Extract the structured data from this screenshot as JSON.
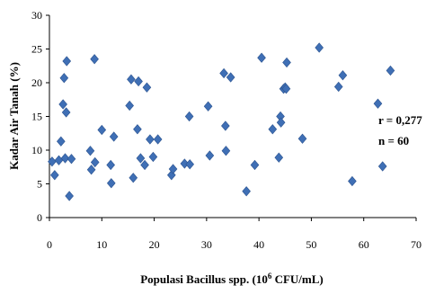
{
  "chart_data": {
    "type": "scatter",
    "xlabel": "Populasi Bacillus spp. (10",
    "xlabel_sup": "6",
    "xlabel_tail": " CFU/mL)",
    "ylabel": "Kadar Air Tanah (%)",
    "xlim": [
      0,
      70
    ],
    "ylim": [
      0,
      30
    ],
    "x_ticks": [
      0,
      10,
      20,
      30,
      40,
      50,
      60,
      70
    ],
    "y_ticks": [
      0,
      5,
      10,
      15,
      20,
      25,
      30
    ],
    "grid": false,
    "marker": "diamond",
    "color": "#3F6FB5",
    "annotations": [
      "r = 0,277",
      "n = 60"
    ],
    "points": [
      [
        0.5,
        8.3
      ],
      [
        1.0,
        6.3
      ],
      [
        1.8,
        8.5
      ],
      [
        2.2,
        11.3
      ],
      [
        2.6,
        16.8
      ],
      [
        2.8,
        20.7
      ],
      [
        3.0,
        8.8
      ],
      [
        3.2,
        15.6
      ],
      [
        3.3,
        23.2
      ],
      [
        3.8,
        3.2
      ],
      [
        4.2,
        8.7
      ],
      [
        7.8,
        9.9
      ],
      [
        8.0,
        7.1
      ],
      [
        8.6,
        23.5
      ],
      [
        8.7,
        8.2
      ],
      [
        10.0,
        13.0
      ],
      [
        11.7,
        7.8
      ],
      [
        11.8,
        5.1
      ],
      [
        12.3,
        12.0
      ],
      [
        15.3,
        16.6
      ],
      [
        15.6,
        20.5
      ],
      [
        16.0,
        5.9
      ],
      [
        16.8,
        13.1
      ],
      [
        17.0,
        20.2
      ],
      [
        17.4,
        8.8
      ],
      [
        18.2,
        7.8
      ],
      [
        18.6,
        19.3
      ],
      [
        19.2,
        11.6
      ],
      [
        19.8,
        9.0
      ],
      [
        20.7,
        11.6
      ],
      [
        23.3,
        6.3
      ],
      [
        23.6,
        7.2
      ],
      [
        25.8,
        8.0
      ],
      [
        26.7,
        15.0
      ],
      [
        26.8,
        7.9
      ],
      [
        30.3,
        16.5
      ],
      [
        30.6,
        9.2
      ],
      [
        33.3,
        21.4
      ],
      [
        33.6,
        13.6
      ],
      [
        33.7,
        9.9
      ],
      [
        34.6,
        20.8
      ],
      [
        37.6,
        3.9
      ],
      [
        39.2,
        7.8
      ],
      [
        40.5,
        23.7
      ],
      [
        42.6,
        13.1
      ],
      [
        43.8,
        8.9
      ],
      [
        44.1,
        15.0
      ],
      [
        44.2,
        14.1
      ],
      [
        44.7,
        19.1
      ],
      [
        45.0,
        19.3
      ],
      [
        45.3,
        23.0
      ],
      [
        48.3,
        11.7
      ],
      [
        51.5,
        25.2
      ],
      [
        55.2,
        19.4
      ],
      [
        56.0,
        21.1
      ],
      [
        57.8,
        5.4
      ],
      [
        62.7,
        16.9
      ],
      [
        63.6,
        7.6
      ],
      [
        65.1,
        21.8
      ],
      [
        45.2,
        19.1
      ]
    ]
  }
}
